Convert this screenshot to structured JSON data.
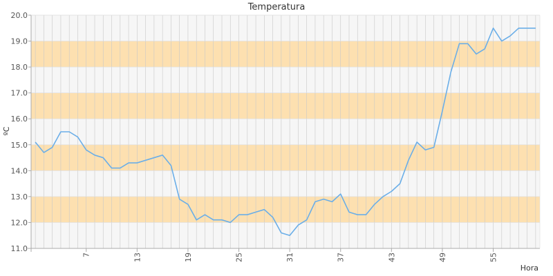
{
  "chart_data": {
    "type": "line",
    "title": "Temperatura",
    "xlabel": "Hora",
    "ylabel": "ºC",
    "ylim": [
      11.0,
      20.0
    ],
    "yticks": [
      "11.0",
      "12.0",
      "13.0",
      "14.0",
      "15.0",
      "16.0",
      "17.0",
      "18.0",
      "19.0",
      "20.0"
    ],
    "xticks": [
      7,
      13,
      19,
      25,
      31,
      37,
      43,
      49,
      55
    ],
    "xlim": [
      0.5,
      60.5
    ],
    "grid": true,
    "band_color": "#fde0b0",
    "alt_band_color": "#f6f6f6",
    "line_color": "#6aaee8",
    "series": [
      {
        "x": [
          1,
          2,
          3,
          4,
          5,
          6,
          7,
          8,
          9,
          10,
          11,
          12,
          13,
          14,
          15,
          16,
          17,
          18,
          19,
          20,
          21,
          22,
          23,
          24,
          25,
          26,
          27,
          28,
          29,
          30,
          31,
          32,
          33,
          34,
          35,
          36,
          37,
          38,
          39,
          40,
          41,
          42,
          43,
          44,
          45,
          46,
          47,
          48,
          49,
          50,
          51,
          52,
          53,
          54,
          55,
          56,
          57,
          58,
          59,
          60
        ],
        "values": [
          15.1,
          14.7,
          14.9,
          15.5,
          15.5,
          15.3,
          14.8,
          14.6,
          14.5,
          14.1,
          14.1,
          14.3,
          14.3,
          14.4,
          14.5,
          14.6,
          14.2,
          12.9,
          12.7,
          12.1,
          12.3,
          12.1,
          12.1,
          12.0,
          12.3,
          12.3,
          12.4,
          12.5,
          12.2,
          11.6,
          11.5,
          11.9,
          12.1,
          12.8,
          12.9,
          12.8,
          13.1,
          12.4,
          12.3,
          12.3,
          12.7,
          13.0,
          13.2,
          13.5,
          14.4,
          15.1,
          14.8,
          14.9,
          16.3,
          17.8,
          18.9,
          18.9,
          18.5,
          18.7,
          19.5,
          19.0,
          19.2,
          19.5,
          19.5,
          19.5
        ]
      }
    ]
  }
}
